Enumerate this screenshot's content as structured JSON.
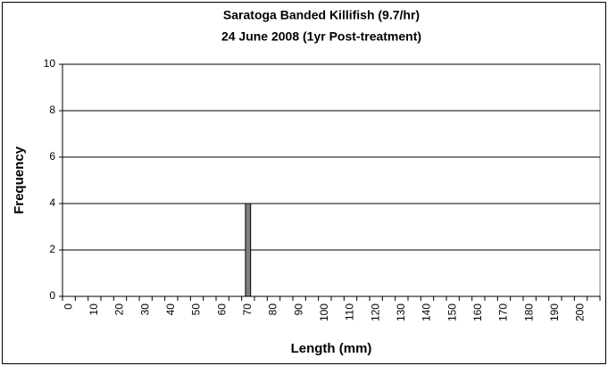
{
  "chart_data": {
    "type": "bar",
    "title": "Saratoga Banded Killifish (9.7/hr)",
    "subtitle": "24 June 2008 (1yr Post-treatment)",
    "x_label": "Length (mm)",
    "y_label": "Frequency",
    "categories": [
      "0",
      null,
      "10",
      null,
      "20",
      null,
      "30",
      null,
      "40",
      null,
      "50",
      null,
      "60",
      null,
      "70",
      null,
      "80",
      null,
      "90",
      null,
      "100",
      null,
      "110",
      null,
      "120",
      null,
      "130",
      null,
      "140",
      null,
      "150",
      null,
      "160",
      null,
      "170",
      null,
      "180",
      null,
      "190",
      null,
      "200",
      null
    ],
    "values": [
      0,
      0,
      0,
      0,
      0,
      0,
      0,
      0,
      0,
      0,
      0,
      0,
      0,
      0,
      4,
      0,
      0,
      0,
      0,
      0,
      0,
      0,
      0,
      0,
      0,
      0,
      0,
      0,
      0,
      0,
      0,
      0,
      0,
      0,
      0,
      0,
      0,
      0,
      0,
      0,
      0,
      0
    ],
    "color": "#808080",
    "ylim": [
      0,
      10
    ],
    "yticks": [
      0,
      2,
      4,
      6,
      8,
      10
    ],
    "grid": true
  }
}
